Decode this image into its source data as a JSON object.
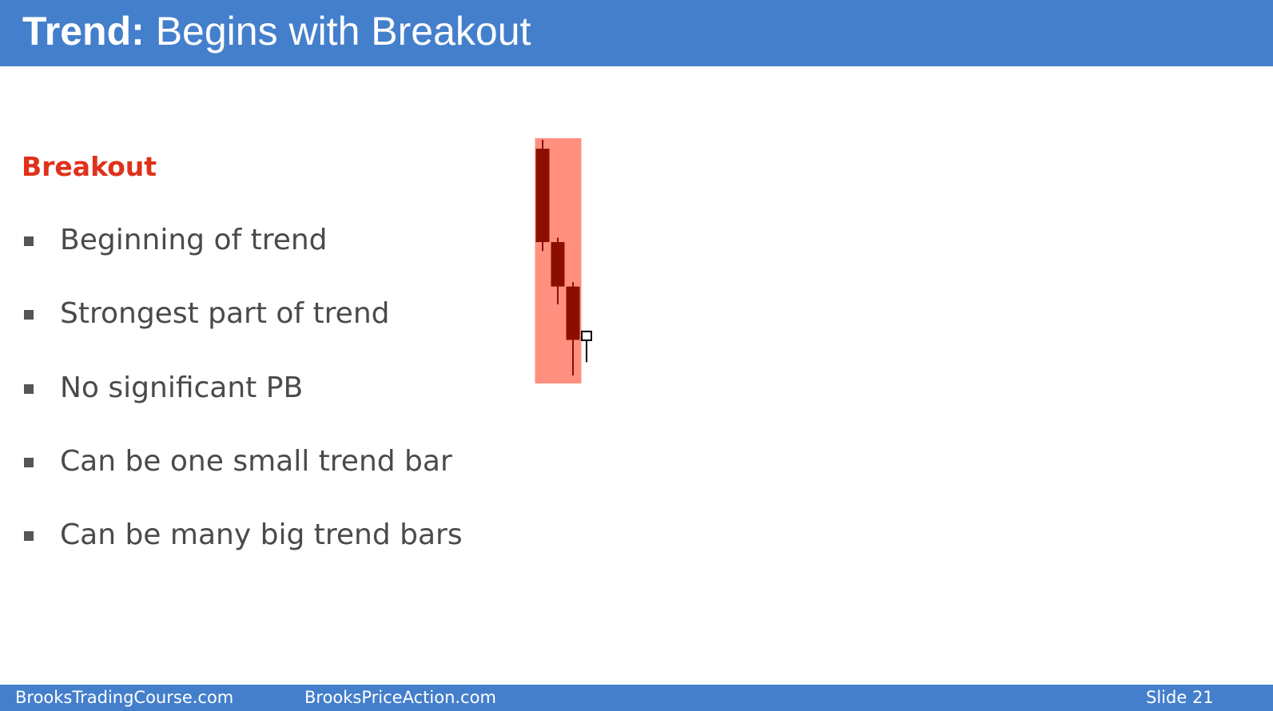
{
  "header": {
    "title_bold": "Trend:",
    "title_rest": " Begins with Breakout"
  },
  "content": {
    "heading": "Breakout",
    "bullets": [
      "Beginning of trend",
      "Strongest part of trend",
      "No significant PB",
      "Can be one small trend bar",
      "Can be many big trend bars"
    ]
  },
  "figure": {
    "highlight_color": "#ff9080",
    "bear_bar_color": "#8b0e00",
    "bars": [
      {
        "kind": "bear",
        "open": 100,
        "high": 102,
        "low": 77,
        "close": 79
      },
      {
        "kind": "bear",
        "open": 79,
        "high": 80,
        "low": 65,
        "close": 69
      },
      {
        "kind": "bear",
        "open": 69,
        "high": 70,
        "low": 49,
        "close": 57
      },
      {
        "kind": "doji",
        "open": 58,
        "high": 59,
        "low": 52,
        "close": 57
      }
    ]
  },
  "footer": {
    "site1": "BrooksTradingCourse.com",
    "site2": "BrooksPriceAction.com",
    "slide_label": "Slide",
    "slide_number": "21"
  },
  "colors": {
    "banner": "#447fcc",
    "heading": "#e0311a",
    "bullet_text": "#4a4a4a"
  }
}
